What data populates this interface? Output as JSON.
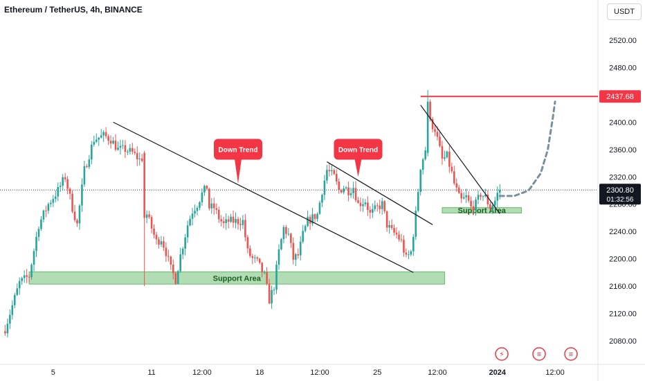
{
  "header": {
    "title": "Ethereum / TetherUS, 4h, BINANCE",
    "currency": "USDT"
  },
  "colors": {
    "up": "#26a69a",
    "down": "#ef5350",
    "resistance": "#f23645",
    "zone_fill": "#a5d6a7",
    "zone_stroke": "#66bb6a",
    "callout": "#f23645",
    "projection": "#78909c"
  },
  "chart_data": {
    "type": "candlestick",
    "symbol": "ETHUSDT",
    "interval": "4h",
    "exchange": "BINANCE",
    "ylim": [
      2060,
      2560
    ],
    "y_ticks": [
      "2080.00",
      "2120.00",
      "2160.00",
      "2200.00",
      "2240.00",
      "2280.00",
      "2320.00",
      "2360.00",
      "2400.00",
      "2440.00",
      "2480.00",
      "2520.00"
    ],
    "x_ticks": [
      {
        "label": "5",
        "bar": 20
      },
      {
        "label": "11",
        "bar": 61
      },
      {
        "label": "12:00",
        "bar": 82
      },
      {
        "label": "18",
        "bar": 106
      },
      {
        "label": "12:00",
        "bar": 131
      },
      {
        "label": "25",
        "bar": 155
      },
      {
        "label": "12:00",
        "bar": 180
      },
      {
        "label": "2024",
        "bar": 205
      },
      {
        "label": "12:00",
        "bar": 229
      }
    ],
    "bar_count": 208,
    "keypoints": [
      [
        0,
        2098
      ],
      [
        6,
        2165
      ],
      [
        10,
        2175
      ],
      [
        14,
        2250
      ],
      [
        18,
        2280
      ],
      [
        22,
        2300
      ],
      [
        25,
        2320
      ],
      [
        28,
        2275
      ],
      [
        30,
        2250
      ],
      [
        33,
        2330
      ],
      [
        37,
        2375
      ],
      [
        41,
        2380
      ],
      [
        44,
        2375
      ],
      [
        47,
        2360
      ],
      [
        50,
        2360
      ],
      [
        53,
        2355
      ],
      [
        56,
        2345
      ],
      [
        58,
        2350
      ],
      [
        59,
        2265
      ],
      [
        61,
        2245
      ],
      [
        63,
        2225
      ],
      [
        65,
        2230
      ],
      [
        67,
        2210
      ],
      [
        69,
        2185
      ],
      [
        71,
        2170
      ],
      [
        73,
        2205
      ],
      [
        76,
        2250
      ],
      [
        78,
        2270
      ],
      [
        80,
        2280
      ],
      [
        82,
        2295
      ],
      [
        84,
        2305
      ],
      [
        85,
        2275
      ],
      [
        87,
        2275
      ],
      [
        89,
        2260
      ],
      [
        91,
        2250
      ],
      [
        93,
        2255
      ],
      [
        95,
        2255
      ],
      [
        97,
        2255
      ],
      [
        99,
        2255
      ],
      [
        101,
        2210
      ],
      [
        103,
        2200
      ],
      [
        105,
        2195
      ],
      [
        108,
        2175
      ],
      [
        110,
        2140
      ],
      [
        112,
        2160
      ],
      [
        114,
        2210
      ],
      [
        116,
        2245
      ],
      [
        118,
        2235
      ],
      [
        120,
        2200
      ],
      [
        122,
        2205
      ],
      [
        124,
        2235
      ],
      [
        126,
        2255
      ],
      [
        128,
        2260
      ],
      [
        130,
        2265
      ],
      [
        132,
        2300
      ],
      [
        134,
        2330
      ],
      [
        137,
        2320
      ],
      [
        139,
        2300
      ],
      [
        141,
        2305
      ],
      [
        143,
        2300
      ],
      [
        145,
        2305
      ],
      [
        147,
        2280
      ],
      [
        150,
        2285
      ],
      [
        152,
        2265
      ],
      [
        155,
        2275
      ],
      [
        157,
        2280
      ],
      [
        159,
        2250
      ],
      [
        161,
        2240
      ],
      [
        163,
        2235
      ],
      [
        165,
        2225
      ],
      [
        167,
        2200
      ],
      [
        169,
        2210
      ],
      [
        171,
        2265
      ],
      [
        173,
        2335
      ],
      [
        175,
        2360
      ],
      [
        176,
        2420
      ],
      [
        177,
        2400
      ],
      [
        179,
        2390
      ],
      [
        180,
        2375
      ],
      [
        182,
        2345
      ],
      [
        184,
        2350
      ],
      [
        186,
        2325
      ],
      [
        187,
        2310
      ],
      [
        189,
        2290
      ],
      [
        190,
        2285
      ],
      [
        192,
        2290
      ],
      [
        194,
        2275
      ],
      [
        196,
        2280
      ],
      [
        198,
        2295
      ],
      [
        200,
        2290
      ],
      [
        202,
        2275
      ],
      [
        204,
        2285
      ],
      [
        205,
        2295
      ],
      [
        206,
        2300.8
      ]
    ],
    "special_bars": [
      {
        "bar": 58,
        "open": 2355,
        "high": 2358,
        "low": 2160,
        "close": 2260
      },
      {
        "bar": 176,
        "open": 2355,
        "high": 2447,
        "low": 2350,
        "close": 2430
      }
    ],
    "price_lines": [
      {
        "label": "2437.68",
        "price": 2437.68,
        "kind": "resistance",
        "from_bar": 173
      },
      {
        "label": "2300.80",
        "price": 2300.8,
        "kind": "last_price"
      }
    ],
    "countdown": "01:32:56",
    "trendlines": [
      {
        "from": [
          45,
          2400
        ],
        "to": [
          170,
          2180
        ]
      },
      {
        "from": [
          134,
          2342
        ],
        "to": [
          178,
          2250
        ]
      },
      {
        "from": [
          173,
          2425
        ],
        "to": [
          206,
          2266
        ]
      }
    ],
    "support_zones": [
      {
        "label": "Support Area",
        "from_bar": 10,
        "to_bar": 183,
        "low": 2163,
        "high": 2181
      },
      {
        "label": "Support Area",
        "from_bar": 182,
        "to_bar": 215,
        "low": 2267,
        "high": 2275
      }
    ],
    "callouts": [
      {
        "label": "Down Trend",
        "bar": 97,
        "price": 2337,
        "tip_bar": 97,
        "tip_price": 2310
      },
      {
        "label": "Down Trend",
        "bar": 147,
        "price": 2337,
        "tip_bar": 147,
        "tip_price": 2320
      }
    ],
    "projection": [
      [
        206,
        2292
      ],
      [
        212,
        2292
      ],
      [
        218,
        2300
      ],
      [
        223,
        2325
      ],
      [
        226,
        2360
      ],
      [
        228,
        2405
      ],
      [
        229,
        2430
      ]
    ]
  }
}
